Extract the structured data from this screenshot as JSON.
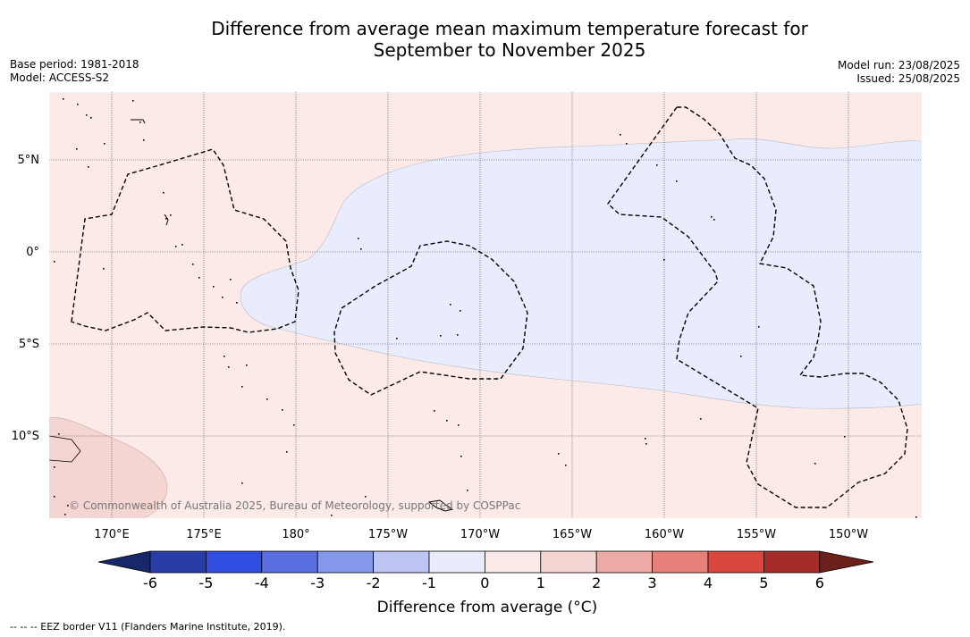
{
  "header": {
    "title_line1": "Difference from average mean maximum temperature forecast for",
    "title_line2": "September to November 2025",
    "base_period": "Base period: 1981-2018",
    "model": "Model: ACCESS-S2",
    "model_run": "Model run: 23/08/2025",
    "issued": "Issued: 25/08/2025"
  },
  "map": {
    "longitude_labels": [
      "170°E",
      "175°E",
      "180°",
      "175°W",
      "170°W",
      "165°W",
      "160°W",
      "155°W",
      "150°W"
    ],
    "latitude_labels": [
      "5°N",
      "0°",
      "5°S",
      "10°S"
    ],
    "copyright": "© Commonwealth of Australia 2025, Bureau of Meteorology, supported by COSPPac",
    "regions": [
      {
        "category": "0 to 1",
        "color": "#fbeae8"
      },
      {
        "category": "-1 to 0",
        "color": "#e8ecfc"
      },
      {
        "category": "1 to 2",
        "color": "#f5d5d2"
      }
    ]
  },
  "colorbar": {
    "title": "Difference from average (°C)",
    "ticks": [
      "-6",
      "-5",
      "-4",
      "-3",
      "-2",
      "-1",
      "0",
      "1",
      "2",
      "3",
      "4",
      "5",
      "6"
    ],
    "under_color": "#16286a",
    "over_color": "#6d1f1a",
    "colors": [
      "#2a3ca8",
      "#314ddf",
      "#5a70e2",
      "#8696e9",
      "#bec5f3",
      "#e8ecfc",
      "#fbeae8",
      "#f5d5d2",
      "#ecaaa5",
      "#e58178",
      "#d9473e",
      "#a52b26"
    ]
  },
  "legend": {
    "footnote": "--  --  -- EEZ border V11 (Flanders Marine Institute, 2019)."
  }
}
